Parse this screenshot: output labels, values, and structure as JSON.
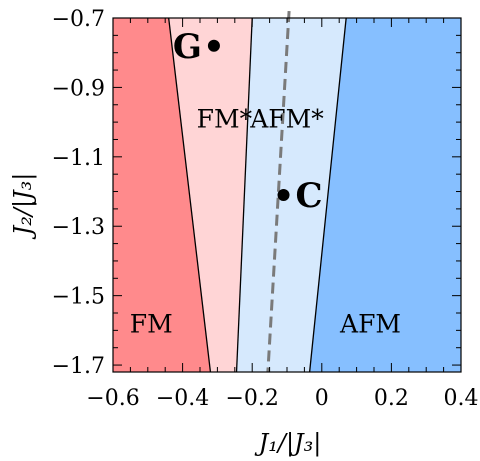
{
  "chart_data": {
    "type": "phase-diagram",
    "xlabel": "J₁/|J₃|",
    "ylabel": "J₂/|J₃|",
    "xlim": [
      -0.6,
      0.4
    ],
    "ylim": [
      -1.72,
      -0.7
    ],
    "xticks": [
      {
        "value": -0.6,
        "label": "−0.6"
      },
      {
        "value": -0.4,
        "label": "−0.4"
      },
      {
        "value": -0.2,
        "label": "−0.2"
      },
      {
        "value": 0,
        "label": "0"
      },
      {
        "value": 0.2,
        "label": "0.2"
      },
      {
        "value": 0.4,
        "label": "0.4"
      }
    ],
    "yticks": [
      {
        "value": -0.7,
        "label": "−0.7"
      },
      {
        "value": -0.9,
        "label": "−0.9"
      },
      {
        "value": -1.1,
        "label": "−1.1"
      },
      {
        "value": -1.3,
        "label": "−1.3"
      },
      {
        "value": -1.5,
        "label": "−1.5"
      },
      {
        "value": -1.7,
        "label": "−1.7"
      }
    ],
    "boundaries": [
      {
        "name": "FM|FM*",
        "style": "solid",
        "points": [
          [
            -0.44,
            -0.7
          ],
          [
            -0.32,
            -1.72
          ]
        ]
      },
      {
        "name": "FM*|AFM*",
        "style": "solid",
        "points": [
          [
            -0.2,
            -0.7
          ],
          [
            -0.245,
            -1.72
          ]
        ]
      },
      {
        "name": "AFM*|AFM",
        "style": "solid",
        "points": [
          [
            0.07,
            -0.7
          ],
          [
            -0.035,
            -1.72
          ]
        ]
      }
    ],
    "dashed_line": {
      "points": [
        [
          -0.094,
          -0.68
        ],
        [
          -0.155,
          -1.72
        ]
      ]
    },
    "regions": [
      {
        "label": "FM",
        "label_at": [
          -0.49,
          -1.58
        ],
        "color": "#ff8a8c"
      },
      {
        "label": "FM*",
        "label_at": [
          -0.28,
          -0.99
        ],
        "color": "#ffd5d6"
      },
      {
        "label": "AFM*",
        "label_at": [
          -0.1,
          -0.99
        ],
        "color": "#d6e9fd"
      },
      {
        "label": "AFM",
        "label_at": [
          0.14,
          -1.58
        ],
        "color": "#86bfff"
      }
    ],
    "points": [
      {
        "label": "G",
        "x": -0.31,
        "y": -0.78
      },
      {
        "label": "C",
        "x": -0.11,
        "y": -1.21
      }
    ]
  }
}
